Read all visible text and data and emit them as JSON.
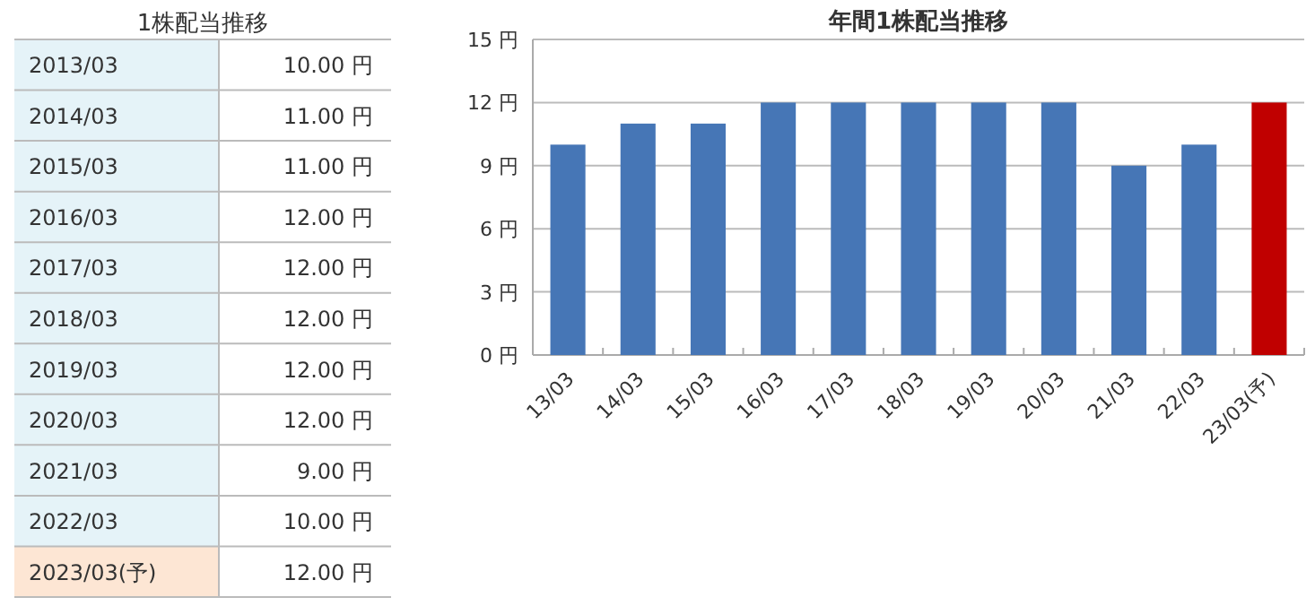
{
  "chart_data": [
    {
      "type": "other",
      "title": "1株配当推移",
      "categories": [
        "2013/03",
        "2014/03",
        "2015/03",
        "2016/03",
        "2017/03",
        "2018/03",
        "2019/03",
        "2020/03",
        "2021/03",
        "2022/03",
        "2023/03(予)"
      ],
      "values": [
        10,
        11,
        11,
        12,
        12,
        12,
        12,
        12,
        9,
        10,
        12
      ],
      "value_labels": [
        "10.00 円",
        "11.00 円",
        "11.00 円",
        "12.00 円",
        "12.00 円",
        "12.00 円",
        "12.00 円",
        "12.00 円",
        "9.00 円",
        "10.00 円",
        "12.00 円"
      ],
      "colors": [
        "#e5f3f8",
        "#e5f3f8",
        "#e5f3f8",
        "#e5f3f8",
        "#e5f3f8",
        "#e5f3f8",
        "#e5f3f8",
        "#e5f3f8",
        "#e5f3f8",
        "#e5f3f8",
        "#fde6d4"
      ]
    },
    {
      "type": "bar",
      "title": "年間1株配当推移",
      "categories": [
        "13/03",
        "14/03",
        "15/03",
        "16/03",
        "17/03",
        "18/03",
        "19/03",
        "20/03",
        "21/03",
        "22/03",
        "23/03(予)"
      ],
      "values": [
        10,
        11,
        11,
        12,
        12,
        12,
        12,
        12,
        9,
        10,
        12
      ],
      "colors": [
        "#4676b6",
        "#4676b6",
        "#4676b6",
        "#4676b6",
        "#4676b6",
        "#4676b6",
        "#4676b6",
        "#4676b6",
        "#4676b6",
        "#4676b6",
        "#c00000"
      ],
      "ylim": [
        0,
        15
      ],
      "yticks": [
        {
          "value": 0,
          "label": "0 円"
        },
        {
          "value": 3,
          "label": "3 円"
        },
        {
          "value": 6,
          "label": "6 円"
        },
        {
          "value": 9,
          "label": "9 円"
        },
        {
          "value": 12,
          "label": "12 円"
        },
        {
          "value": 15,
          "label": "15 円"
        }
      ],
      "grid": "y"
    }
  ]
}
